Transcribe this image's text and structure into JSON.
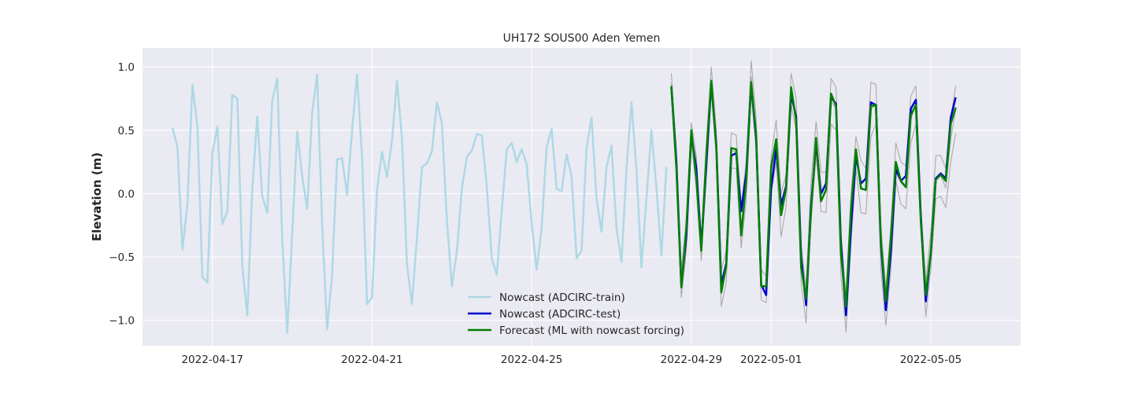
{
  "chart_data": {
    "type": "line",
    "title": "UH172 SOUS00 Aden Yemen",
    "xlabel": "",
    "ylabel": "Elevation (m)",
    "xlim": [
      "2022-04-15T06:00",
      "2022-05-07T06:00"
    ],
    "ylim": [
      -1.2,
      1.15
    ],
    "yticks": [
      -1.0,
      -0.5,
      0.0,
      0.5,
      1.0
    ],
    "ytick_labels": [
      "−1.0",
      "−0.5",
      "0.0",
      "0.5",
      "1.0"
    ],
    "xticks": [
      "2022-04-17",
      "2022-04-21",
      "2022-04-25",
      "2022-04-29",
      "2022-05-01",
      "2022-05-05"
    ],
    "grid": true,
    "legend_position": "lower-center",
    "background": "#eaeaf2",
    "ensemble_member_count": 3,
    "series": [
      {
        "name": "Nowcast (ADCIRC-train)",
        "color": "#add8e6",
        "start": "2022-04-16T00:00",
        "step_hours": 3,
        "values": [
          0.52,
          0.37,
          -0.44,
          -0.08,
          0.86,
          0.53,
          -0.66,
          -0.7,
          0.32,
          0.53,
          -0.24,
          -0.14,
          0.78,
          0.75,
          -0.57,
          -0.96,
          0.04,
          0.61,
          -0.02,
          -0.15,
          0.73,
          0.91,
          -0.36,
          -1.1,
          -0.31,
          0.49,
          0.14,
          -0.12,
          0.64,
          0.94,
          -0.25,
          -1.07,
          -0.64,
          0.27,
          0.28,
          -0.01,
          0.5,
          0.94,
          0.28,
          -0.87,
          -0.82,
          0.03,
          0.33,
          0.13,
          0.42,
          0.89,
          0.44,
          -0.56,
          -0.87,
          -0.35,
          0.21,
          0.24,
          0.33,
          0.72,
          0.56,
          -0.2,
          -0.73,
          -0.46,
          0.04,
          0.29,
          0.34,
          0.47,
          0.46,
          0.06,
          -0.51,
          -0.64,
          -0.14,
          0.35,
          0.4,
          0.25,
          0.35,
          0.23,
          -0.23,
          -0.6,
          -0.27,
          0.37,
          0.51,
          0.04,
          0.02,
          0.31,
          0.14,
          -0.51,
          -0.45,
          0.36,
          0.6,
          -0.04,
          -0.3,
          0.21,
          0.38,
          -0.27,
          -0.54,
          0.19,
          0.72,
          0.19,
          -0.58,
          -0.04,
          0.5,
          0.05,
          -0.49,
          0.21
        ]
      },
      {
        "name": "Nowcast (ADCIRC-test)",
        "color": "#0000cd",
        "start": "2022-04-28T12:00",
        "step_hours": 3,
        "values": [
          0.84,
          0.25,
          -0.73,
          -0.34,
          0.47,
          0.2,
          -0.42,
          0.22,
          0.88,
          0.38,
          -0.72,
          -0.55,
          0.3,
          0.32,
          -0.14,
          0.16,
          0.86,
          0.43,
          -0.72,
          -0.8,
          0.04,
          0.35,
          -0.09,
          0.06,
          0.78,
          0.61,
          -0.5,
          -0.88,
          -0.09,
          0.4,
          0.0,
          0.08,
          0.76,
          0.71,
          -0.4,
          -0.96,
          -0.27,
          0.3,
          0.08,
          0.12,
          0.72,
          0.7,
          -0.4,
          -0.92,
          -0.45,
          0.19,
          0.1,
          0.14,
          0.67,
          0.74,
          -0.18,
          -0.85,
          -0.46,
          0.12,
          0.16,
          0.12,
          0.6,
          0.76
        ]
      },
      {
        "name": "Forecast (ML with nowcast forcing)",
        "color": "#008000",
        "start": "2022-04-28T12:00",
        "step_hours": 3,
        "values": [
          0.85,
          0.2,
          -0.74,
          -0.28,
          0.5,
          0.12,
          -0.45,
          0.3,
          0.89,
          0.36,
          -0.78,
          -0.57,
          0.36,
          0.35,
          -0.33,
          0.1,
          0.88,
          0.46,
          -0.73,
          -0.73,
          0.21,
          0.43,
          -0.17,
          0.04,
          0.84,
          0.58,
          -0.58,
          -0.83,
          -0.13,
          0.44,
          -0.06,
          0.03,
          0.79,
          0.69,
          -0.48,
          -0.89,
          -0.13,
          0.35,
          0.04,
          0.03,
          0.69,
          0.7,
          -0.38,
          -0.85,
          -0.35,
          0.25,
          0.1,
          0.05,
          0.62,
          0.7,
          -0.22,
          -0.8,
          -0.46,
          0.11,
          0.15,
          0.1,
          0.55,
          0.68
        ]
      }
    ],
    "ensemble_band": {
      "color": "#aaaaaa",
      "start": "2022-04-28T12:00",
      "step_hours": 3,
      "upper": [
        0.95,
        0.35,
        -0.6,
        -0.2,
        0.56,
        0.3,
        -0.35,
        0.4,
        1.0,
        0.5,
        -0.6,
        -0.45,
        0.48,
        0.46,
        -0.1,
        0.25,
        1.05,
        0.6,
        -0.6,
        -0.65,
        0.3,
        0.58,
        0.0,
        0.15,
        0.95,
        0.75,
        -0.4,
        -0.75,
        0.1,
        0.57,
        0.17,
        0.17,
        0.91,
        0.84,
        -0.3,
        -0.8,
        0.0,
        0.45,
        0.26,
        0.2,
        0.88,
        0.86,
        -0.25,
        -0.75,
        -0.25,
        0.4,
        0.25,
        0.22,
        0.77,
        0.85,
        -0.1,
        -0.7,
        -0.3,
        0.3,
        0.3,
        0.2,
        0.6,
        0.85
      ],
      "lower": [
        0.8,
        0.15,
        -0.82,
        -0.45,
        0.4,
        0.05,
        -0.53,
        0.15,
        0.8,
        0.3,
        -0.89,
        -0.7,
        0.2,
        0.2,
        -0.43,
        -0.05,
        0.8,
        0.35,
        -0.84,
        -0.86,
        0.0,
        0.25,
        -0.34,
        -0.1,
        0.7,
        0.5,
        -0.7,
        -1.02,
        -0.23,
        0.3,
        -0.14,
        -0.15,
        0.55,
        0.5,
        -0.65,
        -1.09,
        -0.4,
        0.2,
        -0.15,
        -0.16,
        0.45,
        0.55,
        -0.6,
        -1.04,
        -0.6,
        0.1,
        -0.08,
        -0.12,
        0.4,
        0.55,
        -0.3,
        -0.97,
        -0.6,
        -0.04,
        -0.02,
        -0.11,
        0.25,
        0.48
      ]
    }
  }
}
